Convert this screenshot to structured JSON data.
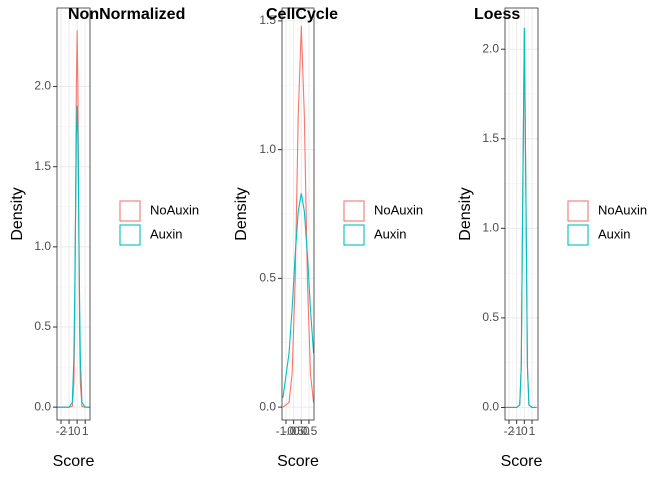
{
  "chart_data": [
    {
      "type": "line",
      "title": "NonNormalized",
      "x_label": "Score",
      "y_label": "Density",
      "x": [
        -2.5,
        -1,
        -0.6,
        -0.4,
        -0.3,
        -0.2,
        -0.1,
        0,
        0.1,
        0.2,
        0.3,
        0.4,
        0.6,
        1,
        1.6
      ],
      "series": [
        {
          "name": "NoAuxin",
          "color": "#F8766D",
          "values": [
            0,
            0,
            0.005,
            0.15,
            0.49,
            1.18,
            1.98,
            2.35,
            1.98,
            1.18,
            0.49,
            0.15,
            0.005,
            0,
            0
          ]
        },
        {
          "name": "Auxin",
          "color": "#00BFC4",
          "values": [
            0,
            0,
            0.03,
            0.31,
            0.68,
            1.2,
            1.68,
            1.88,
            1.68,
            1.2,
            0.68,
            0.31,
            0.03,
            0,
            0
          ]
        }
      ],
      "xlim": [
        -2.5,
        1.6
      ],
      "xticks": [
        -2,
        -1,
        0,
        1
      ],
      "ylim": [
        -0.08,
        2.49
      ],
      "yticks": [
        {
          "value": 0,
          "label": "0.0"
        },
        {
          "value": 0.5,
          "label": "0.5"
        },
        {
          "value": 1,
          "label": "1.0"
        },
        {
          "value": 1.5,
          "label": "1.5"
        },
        {
          "value": 2,
          "label": "2.0"
        }
      ],
      "grid": true
    },
    {
      "type": "line",
      "title": "CellCycle",
      "x_label": "Score",
      "y_label": "Density",
      "x": [
        -1.2,
        -0.8,
        -0.6,
        -0.4,
        -0.2,
        0,
        0.2,
        0.4,
        0.6,
        0.8
      ],
      "series": [
        {
          "name": "NoAuxin",
          "color": "#F8766D",
          "values": [
            0,
            0.018,
            0.13,
            0.49,
            1.13,
            1.48,
            1.13,
            0.49,
            0.13,
            0.018
          ]
        },
        {
          "name": "Auxin",
          "color": "#00BFC4",
          "values": [
            0.036,
            0.21,
            0.38,
            0.59,
            0.76,
            0.83,
            0.76,
            0.59,
            0.38,
            0.21
          ]
        }
      ],
      "xlim": [
        -1.26,
        0.83
      ],
      "xticks": [
        {
          "value": -1,
          "label": "-1.0"
        },
        {
          "value": -0.5,
          "label": "-0.5"
        },
        {
          "value": 0,
          "label": "0.0"
        },
        {
          "value": 0.5,
          "label": "0.5"
        }
      ],
      "ylim": [
        -0.05,
        1.55
      ],
      "yticks": [
        {
          "value": 0,
          "label": "0.0"
        },
        {
          "value": 0.5,
          "label": "0.5"
        },
        {
          "value": 1,
          "label": "1.0"
        },
        {
          "value": 1.5,
          "label": "1.5"
        }
      ],
      "grid": true
    },
    {
      "type": "line",
      "title": "Loess",
      "x_label": "Score",
      "y_label": "Density",
      "x": [
        -2.5,
        -1,
        -0.6,
        -0.4,
        -0.2,
        0,
        0.2,
        0.4,
        0.6,
        1,
        1.6
      ],
      "series": [
        {
          "name": "NoAuxin",
          "color": "#F8766D",
          "values": [
            0,
            0,
            0.014,
            0.23,
            1.21,
            2.1,
            1.21,
            0.23,
            0.014,
            0,
            0
          ]
        },
        {
          "name": "Auxin",
          "color": "#00BFC4",
          "values": [
            0,
            0,
            0.014,
            0.23,
            1.22,
            2.12,
            1.22,
            0.23,
            0.014,
            0,
            0
          ]
        }
      ],
      "xlim": [
        -2.52,
        1.78
      ],
      "xticks": [
        -2,
        -1,
        0,
        1
      ],
      "ylim": [
        -0.07,
        2.23
      ],
      "yticks": [
        {
          "value": 0,
          "label": "0.0"
        },
        {
          "value": 0.5,
          "label": "0.5"
        },
        {
          "value": 1,
          "label": "1.0"
        },
        {
          "value": 1.5,
          "label": "1.5"
        },
        {
          "value": 2,
          "label": "2.0"
        }
      ],
      "grid": true
    }
  ]
}
